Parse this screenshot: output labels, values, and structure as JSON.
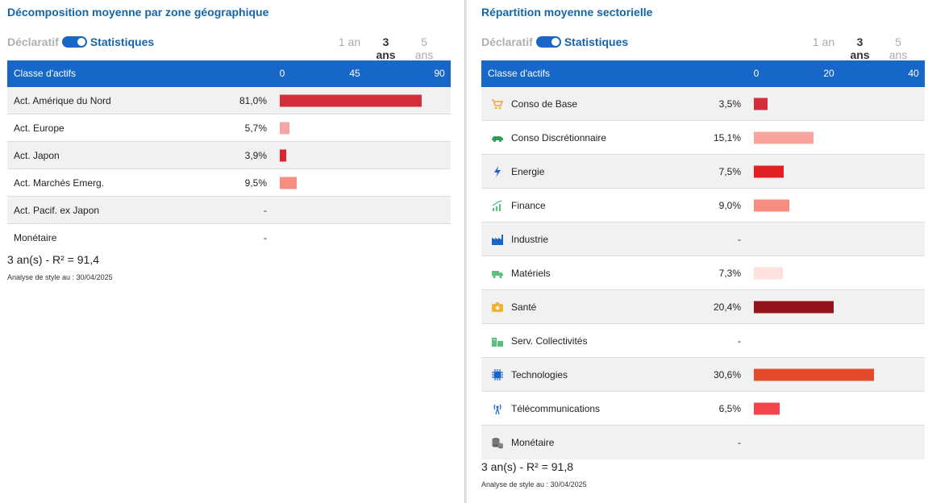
{
  "left": {
    "title": "Décomposition moyenne par zone géographique",
    "toggle": {
      "off_label": "Déclaratif",
      "on_label": "Statistiques",
      "state": "on"
    },
    "periods": [
      "1 an",
      "3 ans",
      "5 ans"
    ],
    "selected_period": "3 ans",
    "header": {
      "label": "Classe d'actifs",
      "ticks": [
        "0",
        "45",
        "90"
      ]
    },
    "rows": [
      {
        "name": "Act. Amérique du Nord",
        "value": "81,0%"
      },
      {
        "name": "Act. Europe",
        "value": "5,7%"
      },
      {
        "name": "Act. Japon",
        "value": "3,9%"
      },
      {
        "name": "Act. Marchés Emerg.",
        "value": "9,5%"
      },
      {
        "name": "Act. Pacif. ex Japon",
        "value": "-"
      },
      {
        "name": "Monétaire",
        "value": "-"
      }
    ],
    "r2": "3 an(s) - R² = 91,4",
    "asof": "Analyse de style au : 30/04/2025"
  },
  "right": {
    "title": "Répartition moyenne sectorielle",
    "toggle": {
      "off_label": "Déclaratif",
      "on_label": "Statistiques",
      "state": "on"
    },
    "periods": [
      "1 an",
      "3 ans",
      "5 ans"
    ],
    "selected_period": "3 ans",
    "header": {
      "label": "Classe d'actifs",
      "ticks": [
        "0",
        "20",
        "40"
      ]
    },
    "rows": [
      {
        "name": "Conso de Base",
        "value": "3,5%",
        "icon": "cart-icon"
      },
      {
        "name": "Conso Discrétionnaire",
        "value": "15,1%",
        "icon": "car-icon"
      },
      {
        "name": "Energie",
        "value": "7,5%",
        "icon": "lightning-icon"
      },
      {
        "name": "Finance",
        "value": "9,0%",
        "icon": "growth-chart-icon"
      },
      {
        "name": "Industrie",
        "value": "-",
        "icon": "factory-icon"
      },
      {
        "name": "Matériels",
        "value": "7,3%",
        "icon": "truck-icon"
      },
      {
        "name": "Santé",
        "value": "20,4%",
        "icon": "medical-case-icon"
      },
      {
        "name": "Serv. Collectivités",
        "value": "-",
        "icon": "buildings-icon"
      },
      {
        "name": "Technologies",
        "value": "30,6%",
        "icon": "chip-icon"
      },
      {
        "name": "Télécommunications",
        "value": "6,5%",
        "icon": "antenna-icon"
      },
      {
        "name": "Monétaire",
        "value": "-",
        "icon": "coins-icon"
      }
    ],
    "r2": "3 an(s) - R² = 91,8",
    "asof": "Analyse de style au : 30/04/2025"
  },
  "chart_data": [
    {
      "type": "bar",
      "categories": [
        "Act. Amérique du Nord",
        "Act. Europe",
        "Act. Japon",
        "Act. Marchés Emerg.",
        "Act. Pacif. ex Japon",
        "Monétaire"
      ],
      "values": [
        81.0,
        5.7,
        3.9,
        9.5,
        null,
        null
      ],
      "colors": [
        "#d22f3a",
        "#f4a5a5",
        "#d9282d",
        "#f78d80",
        null,
        null
      ],
      "xlim": [
        0,
        90
      ]
    },
    {
      "type": "bar",
      "categories": [
        "Conso de Base",
        "Conso Discrétionnaire",
        "Energie",
        "Finance",
        "Industrie",
        "Matériels",
        "Santé",
        "Serv. Collectivités",
        "Technologies",
        "Télécommunications",
        "Monétaire"
      ],
      "values": [
        3.5,
        15.1,
        7.5,
        9.0,
        null,
        7.3,
        20.4,
        null,
        30.6,
        6.5,
        null
      ],
      "colors": [
        "#d22f3a",
        "#f9a39d",
        "#e41f22",
        "#f78d80",
        null,
        "#fde1dc",
        "#93141b",
        null,
        "#e44a28",
        "#f4454d",
        null
      ],
      "xlim": [
        0,
        40
      ]
    }
  ]
}
